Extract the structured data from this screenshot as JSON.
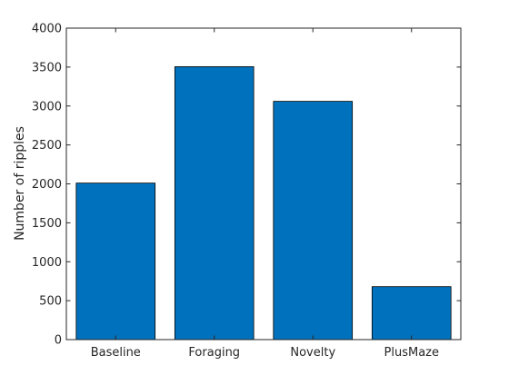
{
  "chart_data": {
    "type": "bar",
    "title": "",
    "xlabel": "",
    "ylabel": "Number of ripples",
    "categories": [
      "Baseline",
      "Foraging",
      "Novelty",
      "PlusMaze"
    ],
    "values": [
      2010,
      3505,
      3060,
      680
    ],
    "ylim": [
      0,
      4000
    ],
    "yticks": [
      0,
      500,
      1000,
      1500,
      2000,
      2500,
      3000,
      3500,
      4000
    ],
    "grid": false,
    "legend": "none",
    "bar_color": "#0072BD",
    "edge_color": "#000000",
    "axis_color": "#262626"
  }
}
